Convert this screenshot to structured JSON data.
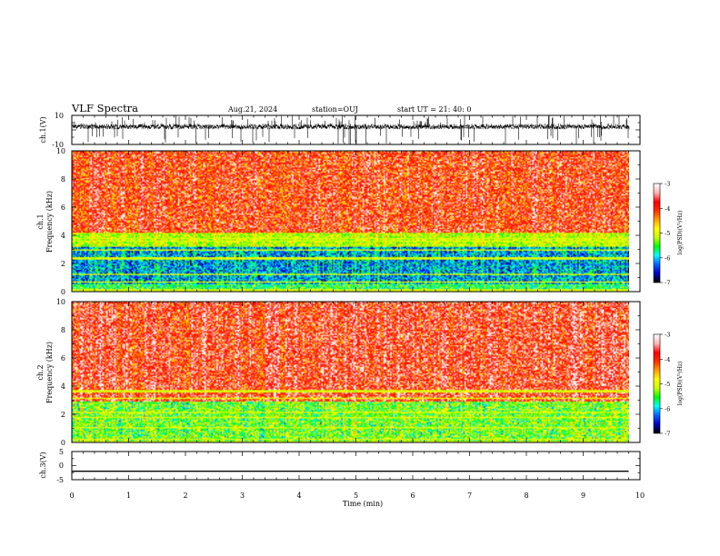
{
  "header": {
    "title": "VLF Spectra",
    "date": "Aug.21, 2024",
    "station": "station=OUJ",
    "start": "start  UT =  21: 40: 0"
  },
  "chart_data": [
    {
      "type": "line",
      "id": "ch1-waveform",
      "ylabel": "ch.1(V)",
      "ylim": [
        -10,
        10
      ],
      "yticks": [
        10,
        -10
      ],
      "xlim": [
        0,
        10
      ],
      "grid": false
    },
    {
      "type": "heatmap",
      "id": "ch1-spectrogram",
      "ylabel_lines": [
        "ch.1",
        "Frequency  (kHz)"
      ],
      "ylim": [
        0,
        10
      ],
      "yticks": [
        0,
        2,
        4,
        6,
        8,
        10
      ],
      "xlim": [
        0,
        10
      ],
      "data_end_min": 9.8,
      "colorbar": {
        "label": "log(PSD)(V²/Hz)",
        "range": [
          -7,
          -3
        ],
        "ticks": [
          -3,
          -4,
          -5,
          -6,
          -7
        ],
        "colors": [
          "#000000",
          "#0000c8",
          "#0066ff",
          "#00ffff",
          "#00ff00",
          "#c8ff00",
          "#ffff00",
          "#ffa000",
          "#ff3000",
          "#ff0000",
          "#ffb4b4",
          "#ffffff"
        ]
      }
    },
    {
      "type": "heatmap",
      "id": "ch2-spectrogram",
      "ylabel_lines": [
        "ch.2",
        "Frequency  (kHz)"
      ],
      "ylim": [
        0,
        10
      ],
      "yticks": [
        0,
        2,
        4,
        6,
        8,
        10
      ],
      "xlim": [
        0,
        10
      ],
      "data_end_min": 9.8,
      "colorbar": {
        "label": "log(PSD)(V²/Hz)",
        "range": [
          -7,
          -3
        ],
        "ticks": [
          -3,
          -4,
          -5,
          -6,
          -7
        ]
      }
    },
    {
      "type": "line",
      "id": "ch3-trace",
      "ylabel": "ch.3(V)",
      "ylim": [
        -5,
        5
      ],
      "yticks": [
        5,
        0,
        -5
      ],
      "xlim": [
        0,
        10
      ],
      "x": [
        0,
        9.8
      ],
      "y": [
        -2.0,
        -2.0
      ],
      "xlabel": "Time  (min)",
      "xticks": [
        0,
        1,
        2,
        3,
        4,
        5,
        6,
        7,
        8,
        9,
        10
      ]
    }
  ]
}
